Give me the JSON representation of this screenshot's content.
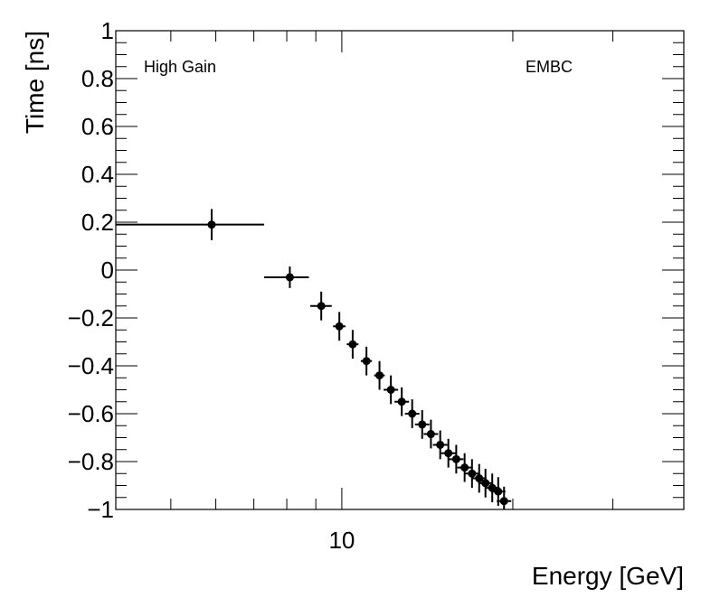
{
  "chart_data": {
    "type": "scatter",
    "xlabel": "Energy [GeV]",
    "ylabel": "Time [ns]",
    "xscale": "log",
    "xlim": [
      4,
      40
    ],
    "ylim": [
      -1,
      1
    ],
    "yticks": [
      -1,
      -0.8,
      -0.6,
      -0.4,
      -0.2,
      0,
      0.2,
      0.4,
      0.6,
      0.8,
      1
    ],
    "ytick_labels": [
      "−1",
      "−0.8",
      "−0.6",
      "−0.4",
      "−0.2",
      "0",
      "0.2",
      "0.4",
      "0.6",
      "0.8",
      "1"
    ],
    "xticks": [
      10
    ],
    "xtick_labels": [
      "10"
    ],
    "annotations": [
      "High Gain",
      "EMBC"
    ],
    "grid": false,
    "marker_color": "#000000",
    "series": [
      {
        "points": [
          {
            "x": 5.9,
            "xlo": 4.0,
            "xhi": 7.3,
            "y": 0.19,
            "yerr": 0.065
          },
          {
            "x": 8.1,
            "xlo": 7.3,
            "xhi": 8.75,
            "y": -0.03,
            "yerr": 0.045
          },
          {
            "x": 9.2,
            "xlo": 8.8,
            "xhi": 9.6,
            "y": -0.15,
            "yerr": 0.06
          },
          {
            "x": 9.9,
            "xlo": 9.65,
            "xhi": 10.15,
            "y": -0.235,
            "yerr": 0.06
          },
          {
            "x": 10.45,
            "xlo": 10.2,
            "xhi": 10.7,
            "y": -0.31,
            "yerr": 0.06
          },
          {
            "x": 11.05,
            "xlo": 10.8,
            "xhi": 11.3,
            "y": -0.38,
            "yerr": 0.06
          },
          {
            "x": 11.65,
            "xlo": 11.4,
            "xhi": 11.9,
            "y": -0.44,
            "yerr": 0.06
          },
          {
            "x": 12.2,
            "y": -0.5,
            "yerr": 0.06
          },
          {
            "x": 12.75,
            "y": -0.55,
            "yerr": 0.06
          },
          {
            "x": 13.3,
            "y": -0.6,
            "yerr": 0.06
          },
          {
            "x": 13.85,
            "y": -0.645,
            "yerr": 0.06
          },
          {
            "x": 14.35,
            "y": -0.685,
            "yerr": 0.06
          },
          {
            "x": 14.9,
            "y": -0.73,
            "yerr": 0.06
          },
          {
            "x": 15.4,
            "y": -0.765,
            "yerr": 0.06
          },
          {
            "x": 15.9,
            "y": -0.79,
            "yerr": 0.06
          },
          {
            "x": 16.45,
            "y": -0.825,
            "yerr": 0.06
          },
          {
            "x": 16.95,
            "y": -0.85,
            "yerr": 0.06
          },
          {
            "x": 17.45,
            "y": -0.87,
            "yerr": 0.06
          },
          {
            "x": 17.9,
            "y": -0.89,
            "yerr": 0.06
          },
          {
            "x": 18.4,
            "y": -0.91,
            "yerr": 0.06
          },
          {
            "x": 18.85,
            "y": -0.925,
            "yerr": 0.06
          },
          {
            "x": 19.3,
            "y": -0.965,
            "yerr": 0.06
          }
        ]
      }
    ]
  }
}
